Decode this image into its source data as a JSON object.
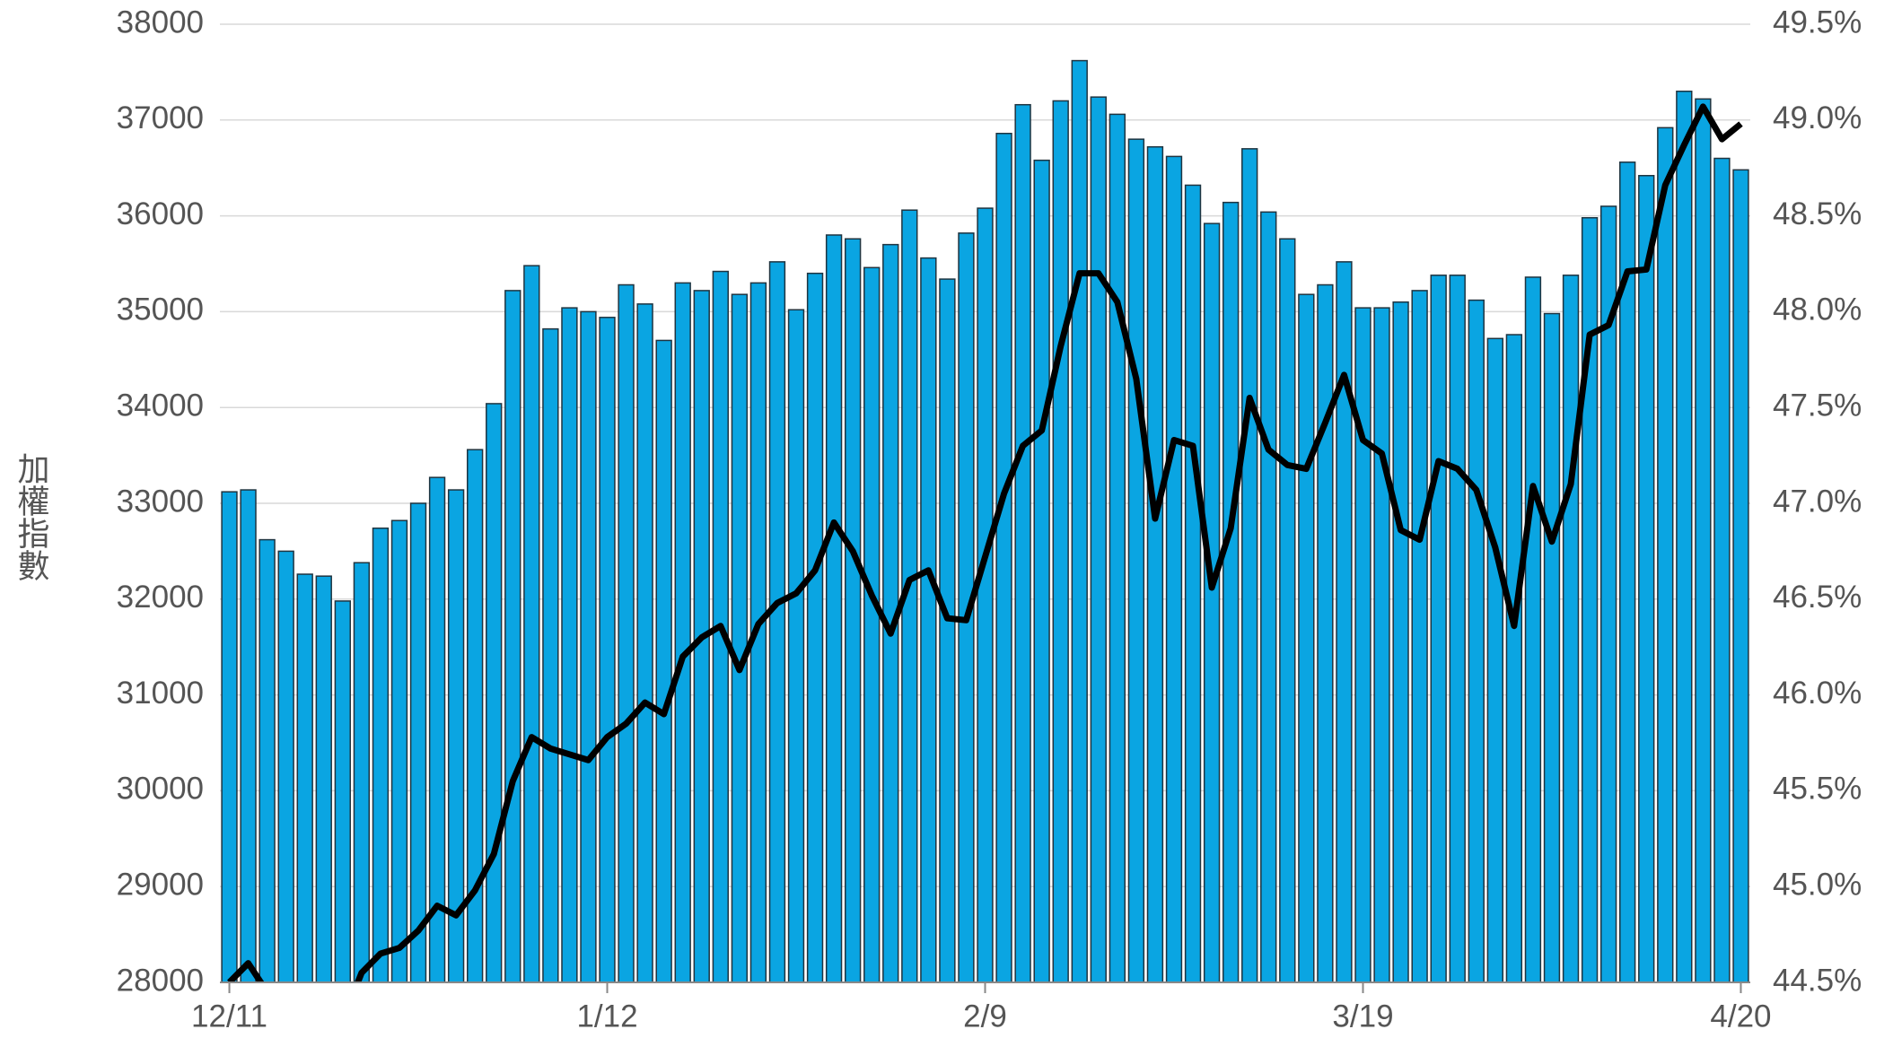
{
  "chart_data": {
    "type": "bar",
    "y_label": "加權指數",
    "categories": [
      "12/11",
      null,
      null,
      null,
      null,
      null,
      null,
      null,
      null,
      null,
      null,
      null,
      null,
      null,
      null,
      null,
      null,
      null,
      null,
      null,
      "1/12",
      null,
      null,
      null,
      null,
      null,
      null,
      null,
      null,
      null,
      null,
      null,
      null,
      null,
      null,
      null,
      null,
      null,
      null,
      null,
      "2/9",
      null,
      null,
      null,
      null,
      null,
      null,
      null,
      null,
      null,
      null,
      null,
      null,
      null,
      null,
      null,
      null,
      null,
      null,
      null,
      "3/19",
      null,
      null,
      null,
      null,
      null,
      null,
      null,
      null,
      null,
      null,
      null,
      null,
      null,
      null,
      null,
      null,
      null,
      null,
      null,
      "4/20"
    ],
    "series": [
      {
        "type": "bar",
        "color": "#0aa5e2",
        "values": [
          33120,
          33140,
          32620,
          32500,
          32260,
          32240,
          31980,
          32380,
          32740,
          32820,
          33000,
          33270,
          33140,
          33560,
          34040,
          35220,
          35480,
          34820,
          35040,
          35000,
          34940,
          35280,
          35080,
          34700,
          35300,
          35220,
          35420,
          35180,
          35300,
          35520,
          35020,
          35400,
          35800,
          35760,
          35460,
          35700,
          36060,
          35560,
          35340,
          35820,
          36080,
          36860,
          37160,
          36580,
          37200,
          37620,
          37240,
          37060,
          36800,
          36720,
          36620,
          36320,
          35920,
          36140,
          36700,
          36040,
          35760,
          35180,
          35280,
          35520,
          35040,
          35040,
          35100,
          35220,
          35380,
          35380,
          35120,
          34720,
          34760,
          35360,
          34980,
          35380,
          35980,
          36100,
          36560,
          36420,
          36920,
          37300,
          37220,
          36600,
          36480
        ]
      },
      {
        "type": "line",
        "axis": "y2",
        "color": "#000000",
        "values": [
          44.5,
          44.6,
          44.45,
          44.3,
          44.2,
          44.2,
          44.3,
          44.55,
          44.65,
          44.68,
          44.77,
          44.9,
          44.85,
          44.98,
          45.17,
          45.55,
          45.78,
          45.72,
          45.69,
          45.66,
          45.78,
          45.85,
          45.96,
          45.9,
          46.2,
          46.3,
          46.36,
          46.13,
          46.37,
          46.48,
          46.53,
          46.65,
          46.9,
          46.75,
          46.52,
          46.32,
          46.6,
          46.65,
          46.4,
          46.39,
          46.72,
          47.05,
          47.3,
          47.38,
          47.82,
          48.2,
          48.2,
          48.05,
          47.65,
          46.92,
          47.33,
          47.3,
          46.56,
          46.87,
          47.55,
          47.28,
          47.2,
          47.18,
          47.42,
          47.67,
          47.33,
          47.26,
          46.86,
          46.81,
          47.22,
          47.18,
          47.07,
          46.77,
          46.36,
          47.09,
          46.8,
          47.1,
          47.88,
          47.93,
          48.21,
          48.22,
          48.66,
          48.87,
          49.07,
          48.9,
          48.98
        ]
      }
    ],
    "ylim": [
      28000,
      38000
    ],
    "yticks": [
      28000,
      29000,
      30000,
      31000,
      32000,
      33000,
      34000,
      35000,
      36000,
      37000,
      38000
    ],
    "y2lim": [
      44.5,
      49.5
    ],
    "y2ticks": [
      {
        "value": 44.5,
        "label": "44.5%"
      },
      {
        "value": 45,
        "label": "45.0%"
      },
      {
        "value": 45.5,
        "label": "45.5%"
      },
      {
        "value": 46,
        "label": "46.0%"
      },
      {
        "value": 46.5,
        "label": "46.5%"
      },
      {
        "value": 47,
        "label": "47.0%"
      },
      {
        "value": 47.5,
        "label": "47.5%"
      },
      {
        "value": 48,
        "label": "48.0%"
      },
      {
        "value": 48.5,
        "label": "48.5%"
      },
      {
        "value": 49,
        "label": "49.0%"
      },
      {
        "value": 49.5,
        "label": "49.5%"
      }
    ],
    "grid": true
  }
}
